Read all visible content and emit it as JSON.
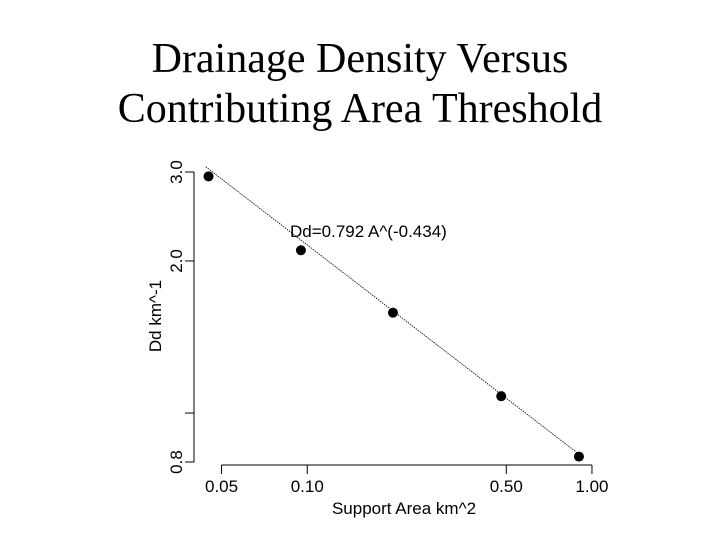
{
  "chart_data": {
    "type": "scatter",
    "title_lines": [
      "Drainage Density Versus",
      "Contributing Area Threshold"
    ],
    "xlabel": "Support Area km^2",
    "ylabel": "Dd  km^-1",
    "x_scale": "log",
    "y_scale": "log",
    "xlim": [
      0.042,
      1.05
    ],
    "ylim": [
      0.8,
      3.0
    ],
    "x_ticks": [
      {
        "value": 0.05,
        "label": "0.05"
      },
      {
        "value": 0.1,
        "label": "0.10"
      },
      {
        "value": 0.5,
        "label": "0.50"
      },
      {
        "value": 1.0,
        "label": "1.00"
      }
    ],
    "y_ticks": [
      {
        "value": 0.8,
        "label": "0.8"
      },
      {
        "value": 1.0,
        "label": ""
      },
      {
        "value": 2.0,
        "label": "2.0"
      },
      {
        "value": 3.0,
        "label": "3.0"
      }
    ],
    "series": [
      {
        "points": [
          {
            "x": 0.045,
            "y": 2.94
          },
          {
            "x": 0.095,
            "y": 2.1
          },
          {
            "x": 0.2,
            "y": 1.58
          },
          {
            "x": 0.48,
            "y": 1.08
          },
          {
            "x": 0.9,
            "y": 0.82
          }
        ]
      }
    ],
    "fit_line": {
      "coef": 0.792,
      "exponent": -0.434,
      "x_range": [
        0.044,
        0.92
      ]
    },
    "annotation": "Dd=0.792 A^(-0.434)",
    "grid": false,
    "legend": "none"
  }
}
